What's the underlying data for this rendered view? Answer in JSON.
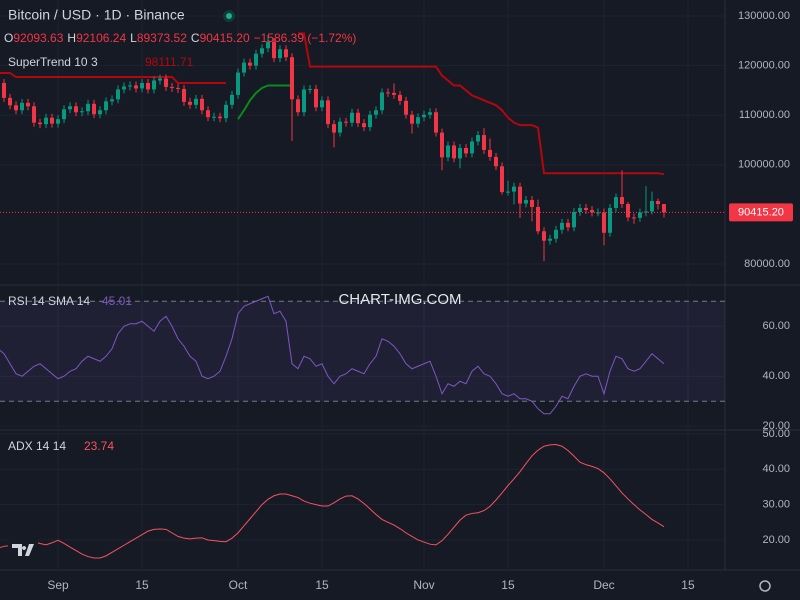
{
  "watermark": "CHART-IMG.COM",
  "chart_data": [
    {
      "type": "candlestick",
      "title": "Bitcoin / USD · 1D · Binance",
      "ohlc": [
        {
          "key": "O",
          "value": "92093.63"
        },
        {
          "key": "H",
          "value": "92106.24"
        },
        {
          "key": "L",
          "value": "89373.52"
        },
        {
          "key": "C",
          "value": "90415.20"
        }
      ],
      "change": "−1586.39 (−1.72%)",
      "up_color": "#089981",
      "down_color": "#f23645",
      "xlim": [
        0.33,
        121.17
      ],
      "ylim": [
        75770,
        133230
      ],
      "yticks": [
        {
          "value": 130000,
          "label": "130000.00"
        },
        {
          "value": 120000,
          "label": "120000.00"
        },
        {
          "value": 110000,
          "label": "110000.00"
        },
        {
          "value": 100000,
          "label": "100000.00"
        },
        {
          "value": 80000,
          "label": "80000.00"
        }
      ],
      "grid": true,
      "last_price": {
        "value": 90415.2,
        "label": "90415.20"
      },
      "open": [
        115000,
        116500,
        113500,
        112000,
        111000,
        112500,
        111800,
        108500,
        108200,
        109500,
        108300,
        109200,
        111200,
        111800,
        110600,
        110800,
        112300,
        110200,
        111000,
        112800,
        113200,
        115200,
        115800,
        116000,
        115400,
        116500,
        115200,
        117000,
        117400,
        115700,
        115500,
        115300,
        112700,
        112100,
        113300,
        111000,
        109600,
        109700,
        109400,
        112100,
        114100,
        118600,
        120600,
        120000,
        122400,
        123500,
        124800,
        121500,
        123300,
        121700,
        113200,
        110600,
        115200,
        115300,
        111600,
        113000,
        108200,
        106500,
        108700,
        108500,
        110500,
        108400,
        107600,
        110100,
        111000,
        114600,
        114500,
        114100,
        112900,
        110100,
        108300,
        109600,
        110100,
        110600,
        106500,
        101500,
        103900,
        101300,
        103400,
        102300,
        104700,
        106000,
        103000,
        101600,
        99700,
        94500,
        94600,
        95600,
        92200,
        92900,
        91500,
        86600,
        84700,
        85100,
        86900,
        88300,
        87400,
        90500,
        91300,
        90900,
        90400,
        90400,
        86300,
        91300,
        93500,
        92100,
        89400,
        89300,
        90400,
        90600,
        92700,
        92093.63
      ],
      "high": [
        117300,
        117300,
        114300,
        112800,
        113300,
        113300,
        112600,
        109300,
        110300,
        110300,
        110000,
        112000,
        112600,
        112600,
        111600,
        113100,
        113100,
        111800,
        113600,
        114000,
        116000,
        116600,
        116800,
        116800,
        117300,
        117300,
        117800,
        118200,
        118200,
        116500,
        116300,
        116100,
        113500,
        114100,
        114100,
        111800,
        110500,
        110500,
        112900,
        114900,
        119400,
        121400,
        121400,
        123200,
        124300,
        126200,
        125600,
        124100,
        124100,
        122500,
        114000,
        116000,
        116100,
        116100,
        113800,
        113800,
        109000,
        109500,
        109500,
        111300,
        111300,
        109200,
        110900,
        111800,
        115400,
        115400,
        116400,
        114900,
        113700,
        110900,
        110400,
        110900,
        111400,
        111400,
        107300,
        104700,
        104700,
        104200,
        104200,
        105500,
        106800,
        107400,
        105300,
        102400,
        100500,
        96800,
        96400,
        96400,
        93700,
        93700,
        93000,
        87400,
        85900,
        87700,
        89100,
        89100,
        91300,
        92100,
        92100,
        91700,
        91200,
        91200,
        92100,
        94200,
        98900,
        92500,
        90200,
        91200,
        95700,
        94600,
        93200,
        92106.24
      ],
      "low": [
        114200,
        112700,
        111200,
        110200,
        110200,
        111000,
        107700,
        107400,
        107400,
        107500,
        107500,
        108400,
        110400,
        109800,
        109800,
        110000,
        109400,
        109400,
        110200,
        112000,
        112400,
        114400,
        115000,
        114600,
        114600,
        114400,
        114400,
        116200,
        114900,
        114700,
        114500,
        111900,
        111300,
        111300,
        110200,
        108800,
        108800,
        108600,
        108600,
        111300,
        113300,
        117800,
        119200,
        119200,
        121600,
        122700,
        120700,
        120700,
        120900,
        104800,
        109800,
        109800,
        114400,
        110800,
        110800,
        107400,
        103500,
        105700,
        107700,
        107700,
        107600,
        106800,
        106800,
        109300,
        110200,
        113700,
        113300,
        112100,
        109300,
        106300,
        107500,
        108800,
        109300,
        105700,
        98900,
        100700,
        100500,
        99300,
        101500,
        101500,
        103900,
        102200,
        100800,
        98900,
        94000,
        93800,
        92000,
        89300,
        91400,
        88600,
        86000,
        80600,
        83900,
        84300,
        86100,
        86600,
        86600,
        89700,
        90100,
        89600,
        89600,
        83800,
        85500,
        90500,
        91300,
        88600,
        88100,
        88500,
        89600,
        90000,
        91000,
        89373.52
      ],
      "close": [
        116500,
        113500,
        112000,
        111000,
        112500,
        111800,
        108500,
        108200,
        109500,
        108300,
        109200,
        111200,
        111800,
        110600,
        110800,
        112300,
        110200,
        111000,
        112800,
        113200,
        115200,
        115800,
        116000,
        115400,
        116500,
        115200,
        117000,
        117400,
        115700,
        115500,
        115300,
        112700,
        112100,
        113300,
        111000,
        109600,
        109700,
        109400,
        112100,
        114100,
        118600,
        120600,
        120000,
        122400,
        123500,
        124800,
        121500,
        123300,
        121700,
        113200,
        110600,
        115200,
        115300,
        111600,
        113000,
        108200,
        106500,
        108700,
        108500,
        110500,
        108400,
        107600,
        110100,
        111000,
        114600,
        114500,
        114100,
        112900,
        110100,
        108300,
        109600,
        110100,
        110600,
        106500,
        101500,
        103900,
        101300,
        103400,
        102300,
        104700,
        106000,
        103000,
        101600,
        99700,
        94500,
        94600,
        95600,
        92200,
        92900,
        91500,
        86600,
        84700,
        85100,
        86900,
        88300,
        87400,
        90500,
        91300,
        90900,
        90400,
        90400,
        86300,
        91300,
        93500,
        92100,
        89400,
        89300,
        90400,
        90600,
        92700,
        92100,
        90415.2
      ],
      "supertrend": {
        "label": "SuperTrend 10 3",
        "value_label": "98111.71",
        "down_color": "#b2070d",
        "up_color": "#0b8a1a",
        "down": [
          118500,
          118500,
          118500,
          117700,
          117700,
          117700,
          117700,
          117700,
          117700,
          117700,
          117700,
          117700,
          117700,
          117700,
          117700,
          117700,
          117700,
          117700,
          117700,
          117700,
          117700,
          117700,
          117700,
          117700,
          117700,
          117700,
          117700,
          117700,
          117700,
          117700,
          116500,
          116500,
          116500,
          116500,
          116500,
          116500,
          116500,
          116500,
          116500,
          null,
          null,
          null,
          null,
          null,
          null,
          null,
          null,
          null,
          null,
          null,
          126500,
          126500,
          119800,
          119800,
          119800,
          119800,
          119800,
          119800,
          119800,
          119800,
          119800,
          119800,
          119800,
          119800,
          119800,
          119800,
          119800,
          119800,
          119800,
          119800,
          119800,
          119800,
          119800,
          119800,
          118000,
          117000,
          116000,
          116000,
          115000,
          114000,
          113500,
          113000,
          112500,
          112000,
          111000,
          109500,
          108500,
          108000,
          108000,
          108000,
          107500,
          98300,
          98300,
          98300,
          98300,
          98300,
          98300,
          98300,
          98300,
          98300,
          98300,
          98300,
          98300,
          98300,
          98300,
          98300,
          98300,
          98300,
          98300,
          98300,
          98300,
          98111.71
        ],
        "up": [
          null,
          null,
          null,
          null,
          null,
          null,
          null,
          null,
          null,
          null,
          null,
          null,
          null,
          null,
          null,
          null,
          null,
          null,
          null,
          null,
          null,
          null,
          null,
          null,
          null,
          null,
          null,
          null,
          null,
          null,
          null,
          null,
          null,
          null,
          null,
          null,
          null,
          null,
          null,
          null,
          109200,
          111000,
          113000,
          114500,
          115500,
          116000,
          116000,
          116000,
          116000,
          116000,
          null,
          null,
          null,
          null,
          null,
          null,
          null,
          null,
          null,
          null,
          null,
          null,
          null,
          null,
          null,
          null,
          null,
          null,
          null,
          null,
          null,
          null,
          null,
          null,
          null,
          null,
          null,
          null,
          null,
          null,
          null,
          null,
          null,
          null,
          null,
          null,
          null,
          null,
          null,
          null,
          null,
          null,
          null,
          null,
          null,
          null,
          null,
          null,
          null,
          null,
          null,
          null,
          null,
          null,
          null,
          null,
          null,
          null,
          null,
          null,
          null,
          null
        ]
      }
    },
    {
      "type": "line",
      "title": "RSI 14 SMA 14",
      "value_label": "45.01",
      "color": "#7e57c2",
      "ylim": [
        18.5,
        76.5
      ],
      "bands": [
        70,
        30
      ],
      "band_fill": "rgba(126,87,194,0.10)",
      "yticks": [
        {
          "value": 60,
          "label": "60.00"
        },
        {
          "value": 40,
          "label": "40.00"
        },
        {
          "value": 20,
          "label": "20.00"
        }
      ],
      "values": [
        51,
        49,
        45,
        41,
        40,
        42,
        44,
        45,
        43,
        41,
        39,
        40,
        42,
        43,
        46,
        48,
        47,
        46,
        48,
        51,
        57,
        60,
        61,
        61,
        62,
        60,
        58,
        62,
        64,
        60,
        55,
        52,
        48,
        46,
        40,
        39,
        40,
        42,
        48,
        55,
        65,
        68,
        69,
        70,
        71,
        72,
        65,
        66,
        62,
        45,
        43,
        48,
        47,
        44,
        45,
        40,
        37,
        40,
        41,
        43,
        42,
        41,
        45,
        48,
        55,
        54,
        52,
        49,
        45,
        43,
        44,
        45,
        46,
        40,
        33,
        37,
        36,
        38,
        37,
        42,
        44,
        41,
        40,
        37,
        33,
        32,
        33,
        31,
        31,
        30,
        27,
        25,
        25,
        28,
        32,
        31,
        36,
        40,
        41,
        40,
        40,
        33,
        42,
        48,
        47,
        43,
        42,
        43,
        46,
        49,
        47,
        45.01
      ]
    },
    {
      "type": "line",
      "title": "ADX 14 14",
      "value_label": "23.74",
      "color": "#f7525f",
      "ylim": [
        11.5,
        51.1
      ],
      "yticks": [
        {
          "value": 50,
          "label": "50.00"
        },
        {
          "value": 40,
          "label": "40.00"
        },
        {
          "value": 30,
          "label": "30.00"
        },
        {
          "value": 20,
          "label": "20.00"
        }
      ],
      "xticks": [
        {
          "value": 10,
          "label": "Sep"
        },
        {
          "value": 24,
          "label": "15"
        },
        {
          "value": 40,
          "label": "Oct"
        },
        {
          "value": 54,
          "label": "15"
        },
        {
          "value": 71,
          "label": "Nov"
        },
        {
          "value": 85,
          "label": "15"
        },
        {
          "value": 101,
          "label": "Dec"
        },
        {
          "value": 115,
          "label": "15"
        }
      ],
      "values": [
        17.7,
        18.2,
        18.4,
        18.6,
        19.3,
        20,
        19.5,
        19,
        18.6,
        19.2,
        19.9,
        19,
        18,
        17,
        16,
        15.3,
        14.9,
        14.9,
        15.5,
        16.5,
        17.5,
        18.5,
        19.5,
        20.5,
        21.5,
        22.5,
        23,
        23.1,
        23,
        22,
        21,
        20.5,
        20.3,
        20.5,
        20.6,
        20,
        19.8,
        19.6,
        19.5,
        20.5,
        22,
        24,
        26,
        28,
        30,
        31.5,
        32.5,
        33,
        33,
        32.5,
        32,
        31,
        30.4,
        30,
        29.6,
        29.6,
        30.5,
        31.6,
        32.4,
        32.5,
        31.6,
        30.3,
        28.8,
        27.2,
        25.8,
        25,
        24.2,
        23.2,
        22,
        21,
        20,
        19.4,
        18.8,
        18.6,
        19.8,
        21.6,
        23.6,
        25.6,
        27,
        27.5,
        27.7,
        28.3,
        29.5,
        31.3,
        33.3,
        35.4,
        37.3,
        39.3,
        41.6,
        43.8,
        45.4,
        46.5,
        46.9,
        47,
        46.5,
        45.3,
        43.7,
        42,
        41.3,
        40.8,
        40.2,
        39,
        37.3,
        35.3,
        33.3,
        31.6,
        30,
        28.5,
        27.2,
        25.8,
        24.8,
        23.74
      ]
    }
  ]
}
